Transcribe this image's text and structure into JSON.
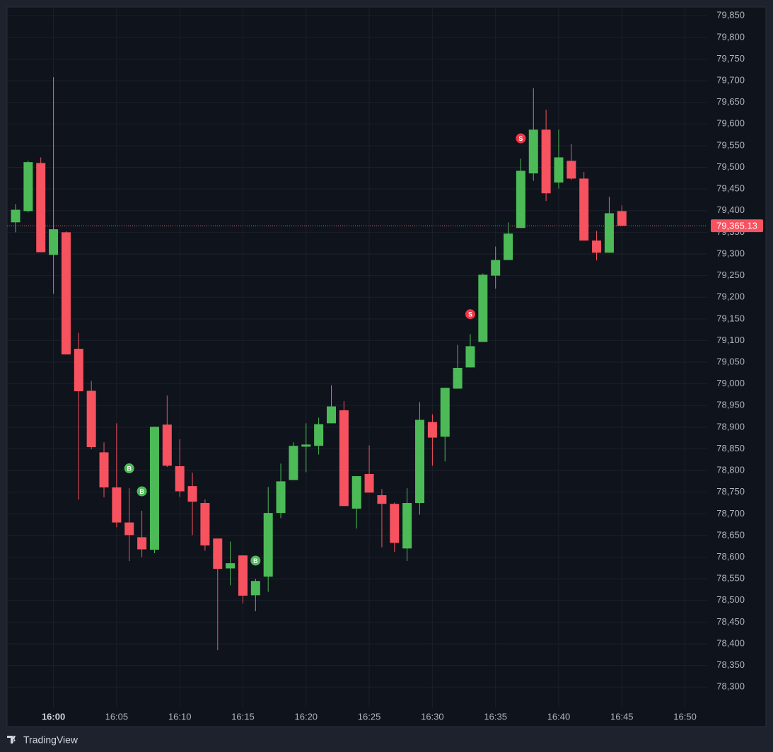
{
  "chart_data": {
    "type": "candlestick",
    "x": [
      "15:57",
      "15:58",
      "15:59",
      "16:00",
      "16:01",
      "16:02",
      "16:03",
      "16:04",
      "16:05",
      "16:06",
      "16:07",
      "16:08",
      "16:09",
      "16:10",
      "16:11",
      "16:12",
      "16:13",
      "16:14",
      "16:15",
      "16:16",
      "16:17",
      "16:18",
      "16:19",
      "16:20",
      "16:21",
      "16:22",
      "16:23",
      "16:24",
      "16:25",
      "16:26",
      "16:27",
      "16:28",
      "16:29",
      "16:30",
      "16:31",
      "16:32",
      "16:33",
      "16:34",
      "16:35",
      "16:36",
      "16:37",
      "16:38",
      "16:39",
      "16:40",
      "16:41",
      "16:42",
      "16:43",
      "16:44",
      "16:45"
    ],
    "open": [
      79373,
      79399,
      79510,
      79298,
      79350,
      79081,
      78984,
      78842,
      78761,
      78680,
      78646,
      78617,
      78906,
      78810,
      78764,
      78725,
      78643,
      78574,
      78604,
      78512,
      78555,
      78702,
      78778,
      78855,
      78857,
      78909,
      78939,
      78712,
      78792,
      78743,
      78723,
      78620,
      78725,
      78912,
      78878,
      78989,
      79038,
      79097,
      79250,
      79286,
      79360,
      79486,
      79587,
      79465,
      79515,
      79474,
      79331,
      79303,
      79399
    ],
    "high": [
      79415,
      79515,
      79523,
      79708,
      79352,
      79118,
      79007,
      78865,
      78909,
      78759,
      78707,
      78901,
      78973,
      78872,
      78795,
      78733,
      78643,
      78636,
      78604,
      78550,
      78762,
      78816,
      78865,
      78909,
      78922,
      78997,
      78960,
      78787,
      78858,
      78757,
      78726,
      78759,
      78958,
      78930,
      78991,
      79090,
      79115,
      79255,
      79317,
      79373,
      79520,
      79683,
      79633,
      79587,
      79554,
      79489,
      79353,
      79432,
      79412
    ],
    "low": [
      79350,
      79396,
      79304,
      79208,
      79068,
      78733,
      78849,
      78738,
      78669,
      78591,
      78600,
      78609,
      78808,
      78739,
      78651,
      78615,
      78385,
      78535,
      78493,
      78475,
      78520,
      78690,
      78778,
      78796,
      78837,
      78909,
      78718,
      78666,
      78749,
      78623,
      78612,
      78591,
      78698,
      78811,
      78821,
      78989,
      79038,
      79097,
      79220,
      79286,
      79360,
      79469,
      79422,
      79451,
      79471,
      79331,
      79285,
      79303,
      79365
    ],
    "close": [
      79402,
      79512,
      79304,
      79357,
      79068,
      78983,
      78854,
      78761,
      78680,
      78651,
      78618,
      78901,
      78811,
      78752,
      78728,
      78627,
      78573,
      78586,
      78511,
      78545,
      78702,
      78775,
      78857,
      78860,
      78907,
      78948,
      78718,
      78787,
      78749,
      78723,
      78633,
      78725,
      78917,
      78876,
      78991,
      79037,
      79087,
      79252,
      79286,
      79347,
      79492,
      79587,
      79440,
      79523,
      79474,
      79331,
      79303,
      79394,
      79365.13
    ],
    "up_color": "#4cbb57",
    "down_color": "#f7525f",
    "ylim": [
      78253,
      79870
    ],
    "yticks": [
      {
        "value": 78300,
        "label": "78,300"
      },
      {
        "value": 78350,
        "label": "78,350"
      },
      {
        "value": 78400,
        "label": "78,400"
      },
      {
        "value": 78450,
        "label": "78,450"
      },
      {
        "value": 78500,
        "label": "78,500"
      },
      {
        "value": 78550,
        "label": "78,550"
      },
      {
        "value": 78600,
        "label": "78,600"
      },
      {
        "value": 78650,
        "label": "78,650"
      },
      {
        "value": 78700,
        "label": "78,700"
      },
      {
        "value": 78750,
        "label": "78,750"
      },
      {
        "value": 78800,
        "label": "78,800"
      },
      {
        "value": 78850,
        "label": "78,850"
      },
      {
        "value": 78900,
        "label": "78,900"
      },
      {
        "value": 78950,
        "label": "78,950"
      },
      {
        "value": 79000,
        "label": "79,000"
      },
      {
        "value": 79050,
        "label": "79,050"
      },
      {
        "value": 79100,
        "label": "79,100"
      },
      {
        "value": 79150,
        "label": "79,150"
      },
      {
        "value": 79200,
        "label": "79,200"
      },
      {
        "value": 79250,
        "label": "79,250"
      },
      {
        "value": 79300,
        "label": "79,300"
      },
      {
        "value": 79350,
        "label": "79,350"
      },
      {
        "value": 79400,
        "label": "79,400"
      },
      {
        "value": 79450,
        "label": "79,450"
      },
      {
        "value": 79500,
        "label": "79,500"
      },
      {
        "value": 79550,
        "label": "79,550"
      },
      {
        "value": 79600,
        "label": "79,600"
      },
      {
        "value": 79650,
        "label": "79,650"
      },
      {
        "value": 79700,
        "label": "79,700"
      },
      {
        "value": 79750,
        "label": "79,750"
      },
      {
        "value": 79800,
        "label": "79,800"
      },
      {
        "value": 79850,
        "label": "79,850"
      }
    ],
    "xticks": [
      "16:00",
      "16:05",
      "16:10",
      "16:15",
      "16:20",
      "16:25",
      "16:30",
      "16:35",
      "16:40",
      "16:45",
      "16:50"
    ],
    "grid": true,
    "last_price": {
      "value": 79365.13,
      "label": "79,365.13"
    },
    "markers": [
      {
        "x": "16:06",
        "value": 78805,
        "label": "B",
        "color": "#4cbb57"
      },
      {
        "x": "16:07",
        "value": 78752,
        "label": "B",
        "color": "#4cbb57"
      },
      {
        "x": "16:16",
        "value": 78592,
        "label": "B",
        "color": "#4cbb57"
      },
      {
        "x": "16:33",
        "value": 79161,
        "label": "S",
        "color": "#f23645"
      },
      {
        "x": "16:37",
        "value": 79567,
        "label": "S",
        "color": "#f23645"
      }
    ]
  },
  "footer": {
    "brand": "TradingView"
  }
}
